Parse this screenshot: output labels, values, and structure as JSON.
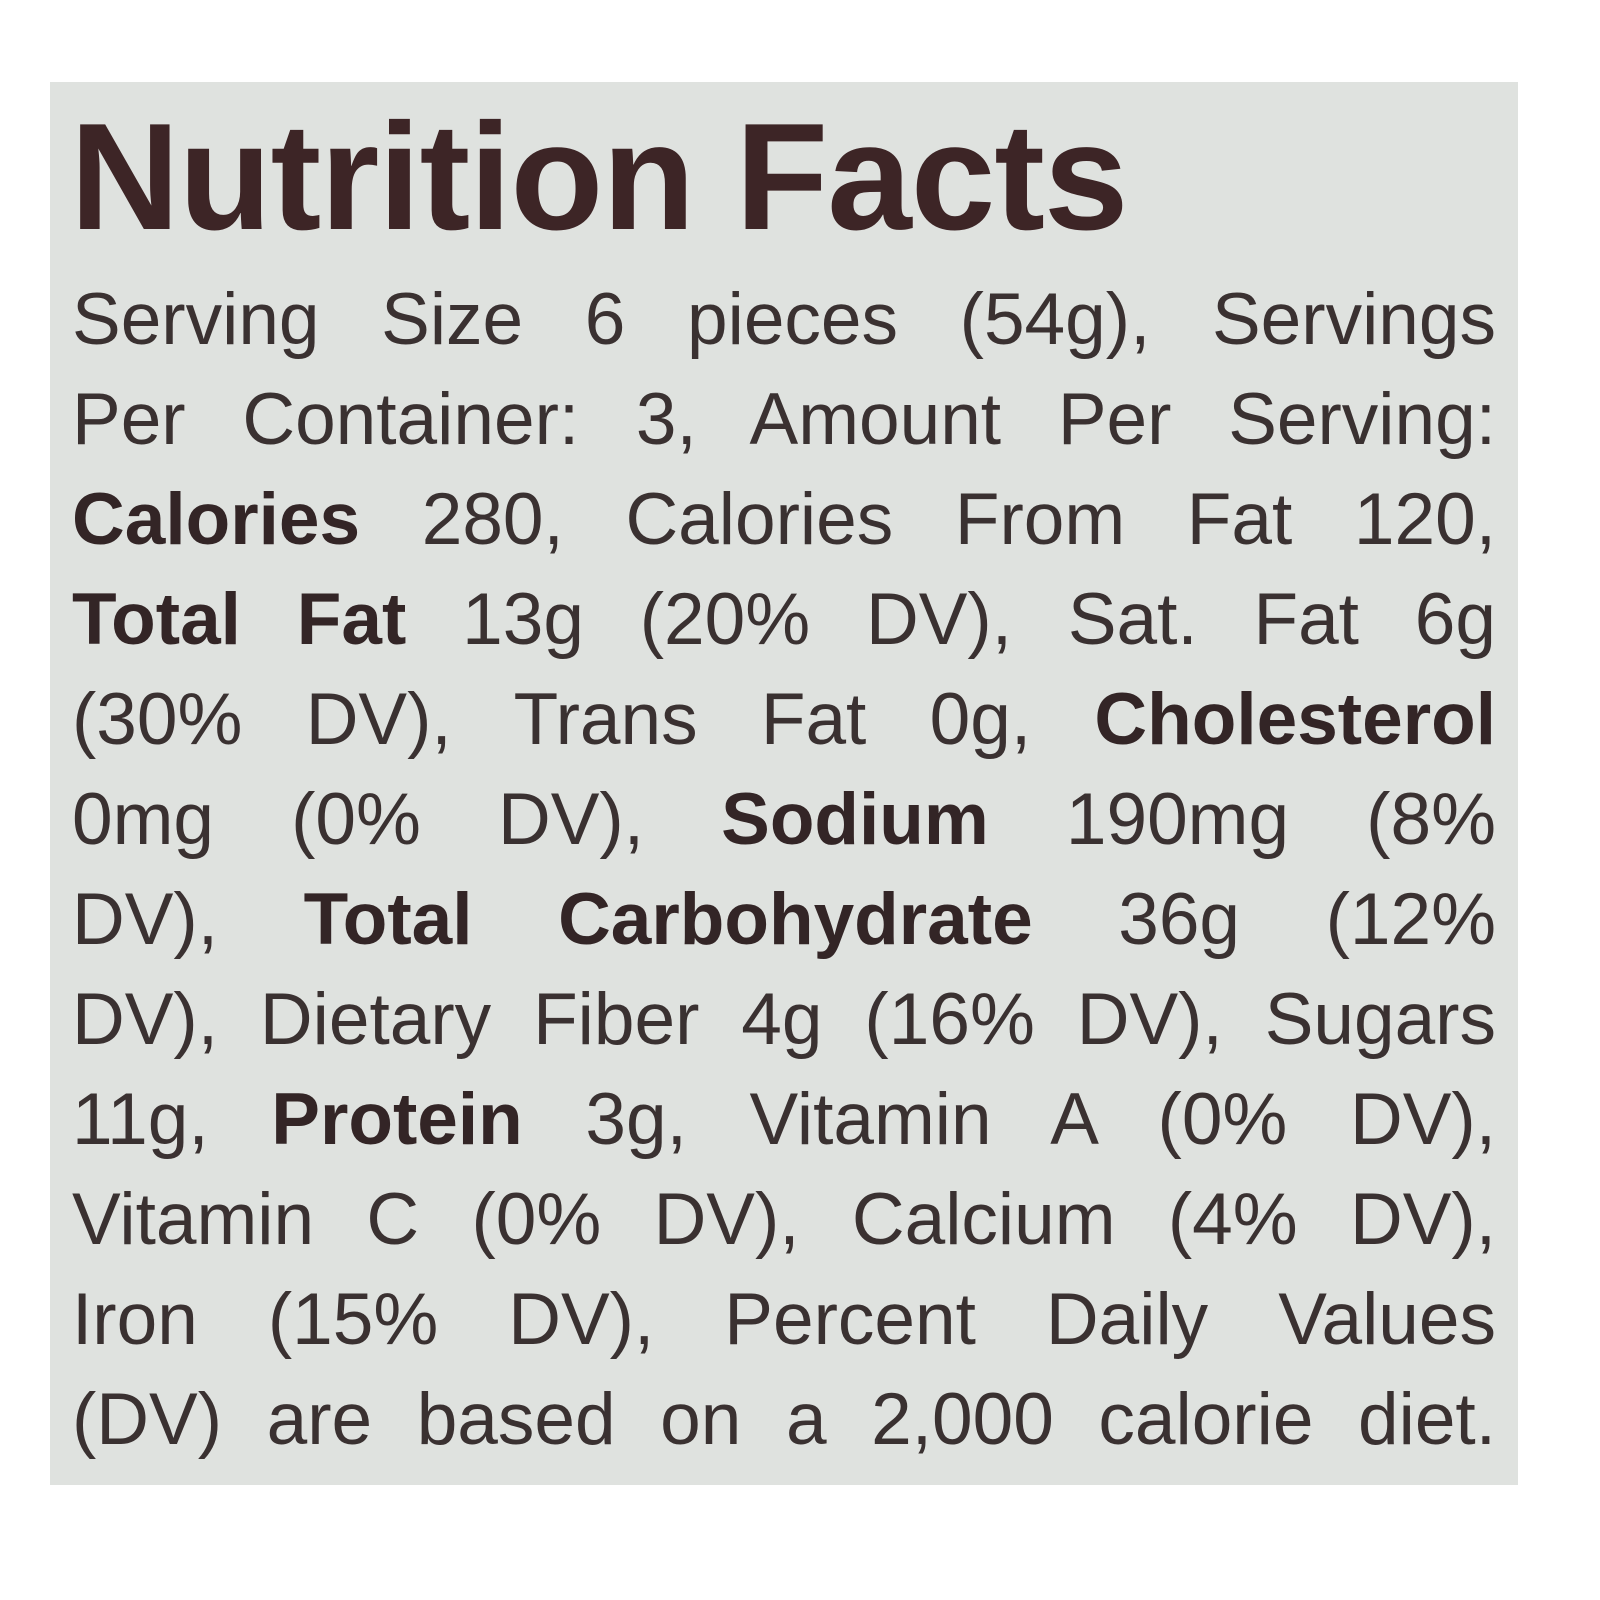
{
  "label": {
    "title": "Nutrition Facts",
    "colors": {
      "background": "#dfe2df",
      "title": "#3d2526",
      "text": "#3a3131"
    },
    "lines": [
      [
        {
          "text": "Serving Size 6 pieces (54g), Servings",
          "bold": false
        }
      ],
      [
        {
          "text": "Per Container: 3, Amount Per Serving:",
          "bold": false
        }
      ],
      [
        {
          "text": "Calories",
          "bold": true
        },
        {
          "text": " 280, Calories From Fat 120,",
          "bold": false
        }
      ],
      [
        {
          "text": "Total Fat",
          "bold": true
        },
        {
          "text": " 13g (20% DV), Sat. Fat 6g",
          "bold": false
        }
      ],
      [
        {
          "text": "(30% DV), Trans Fat 0g, ",
          "bold": false
        },
        {
          "text": "Cholesterol",
          "bold": true
        }
      ],
      [
        {
          "text": "0mg (0% DV), ",
          "bold": false
        },
        {
          "text": "Sodium",
          "bold": true
        },
        {
          "text": " 190mg (8%",
          "bold": false
        }
      ],
      [
        {
          "text": "DV), ",
          "bold": false
        },
        {
          "text": "Total Carbohydrate",
          "bold": true
        },
        {
          "text": " 36g (12%",
          "bold": false
        }
      ],
      [
        {
          "text": "DV), Dietary Fiber 4g (16% DV), Sugars",
          "bold": false
        }
      ],
      [
        {
          "text": "11g, ",
          "bold": false
        },
        {
          "text": "Protein",
          "bold": true
        },
        {
          "text": " 3g, Vitamin A (0% DV),",
          "bold": false
        }
      ],
      [
        {
          "text": "Vitamin C (0% DV), Calcium (4% DV),",
          "bold": false
        }
      ],
      [
        {
          "text": "Iron (15% DV), Percent Daily Values",
          "bold": false
        }
      ],
      [
        {
          "text": "(DV) are based on a 2,000 calorie diet.",
          "bold": false
        }
      ]
    ]
  }
}
